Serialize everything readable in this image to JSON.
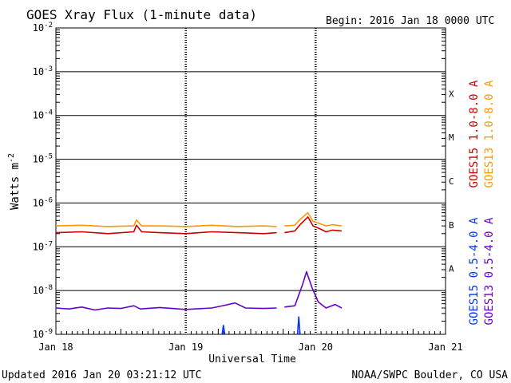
{
  "chart_data": {
    "type": "line",
    "title": "GOES Xray Flux (1-minute data)",
    "begin_label": "Begin:  2016 Jan 18 0000 UTC",
    "ylabel": "Watts m",
    "ylabel_sup": "-2",
    "xlabel": "Universal Time",
    "yscale": "log",
    "ylim": [
      1e-09,
      0.01
    ],
    "y_ticks": [
      {
        "mant": "10",
        "exp": "-2"
      },
      {
        "mant": "10",
        "exp": "-3"
      },
      {
        "mant": "10",
        "exp": "-4"
      },
      {
        "mant": "10",
        "exp": "-5"
      },
      {
        "mant": "10",
        "exp": "-6"
      },
      {
        "mant": "10",
        "exp": "-7"
      },
      {
        "mant": "10",
        "exp": "-8"
      },
      {
        "mant": "10",
        "exp": "-9"
      }
    ],
    "x_ticks": [
      "Jan 18",
      "Jan 19",
      "Jan 20",
      "Jan 21"
    ],
    "xlim_days": [
      0,
      3
    ],
    "flare_classes": [
      "X",
      "M",
      "C",
      "B",
      "A"
    ],
    "legend": [
      {
        "name": "GOES15 1.0-8.0 A",
        "color": "#cc0000"
      },
      {
        "name": "GOES13 1.0-8.0 A",
        "color": "#ff9900"
      },
      {
        "name": "GOES15 0.5-4.0 A",
        "color": "#0033ff"
      },
      {
        "name": "GOES13 0.5-4.0 A",
        "color": "#6600cc"
      }
    ],
    "series": [
      {
        "name": "GOES15 1.0-8.0 A",
        "color": "#cc0000",
        "points": [
          [
            0.0,
            2.1e-07
          ],
          [
            0.2,
            2.2e-07
          ],
          [
            0.4,
            2e-07
          ],
          [
            0.6,
            2.2e-07
          ],
          [
            0.62,
            3.1e-07
          ],
          [
            0.66,
            2.2e-07
          ],
          [
            0.8,
            2.1e-07
          ],
          [
            1.0,
            2e-07
          ],
          [
            1.2,
            2.2e-07
          ],
          [
            1.4,
            2.1e-07
          ],
          [
            1.6,
            2e-07
          ],
          [
            1.7,
            2.1e-07
          ],
          [
            null,
            null
          ],
          [
            1.76,
            2.1e-07
          ],
          [
            1.84,
            2.3e-07
          ],
          [
            1.88,
            3.2e-07
          ],
          [
            1.94,
            4.8e-07
          ],
          [
            1.98,
            3e-07
          ],
          [
            2.03,
            2.6e-07
          ],
          [
            2.08,
            2.2e-07
          ],
          [
            2.13,
            2.4e-07
          ],
          [
            2.2,
            2.3e-07
          ]
        ]
      },
      {
        "name": "GOES13 1.0-8.0 A",
        "color": "#ff9900",
        "points": [
          [
            0.0,
            3e-07
          ],
          [
            0.2,
            3.1e-07
          ],
          [
            0.4,
            2.9e-07
          ],
          [
            0.6,
            3e-07
          ],
          [
            0.62,
            4.1e-07
          ],
          [
            0.66,
            3e-07
          ],
          [
            0.8,
            3e-07
          ],
          [
            1.0,
            2.9e-07
          ],
          [
            1.2,
            3.1e-07
          ],
          [
            1.4,
            2.9e-07
          ],
          [
            1.6,
            3e-07
          ],
          [
            1.7,
            2.9e-07
          ],
          [
            null,
            null
          ],
          [
            1.76,
            3e-07
          ],
          [
            1.84,
            3.1e-07
          ],
          [
            1.88,
            4.2e-07
          ],
          [
            1.94,
            6e-07
          ],
          [
            1.98,
            3.8e-07
          ],
          [
            2.03,
            3.4e-07
          ],
          [
            2.08,
            3e-07
          ],
          [
            2.13,
            3.2e-07
          ],
          [
            2.2,
            3e-07
          ]
        ]
      },
      {
        "name": "GOES15 0.5-4.0 A",
        "color": "#0033ff",
        "points": [
          [
            1.28,
            1e-09
          ],
          [
            1.29,
            1.6e-09
          ],
          [
            1.3,
            1e-09
          ],
          [
            null,
            null
          ],
          [
            1.86,
            1e-09
          ],
          [
            1.87,
            2.5e-09
          ],
          [
            1.88,
            1e-09
          ]
        ]
      },
      {
        "name": "GOES13 0.5-4.0 A",
        "color": "#6600cc",
        "points": [
          [
            0.0,
            4e-09
          ],
          [
            0.1,
            3.8e-09
          ],
          [
            0.2,
            4.2e-09
          ],
          [
            0.3,
            3.6e-09
          ],
          [
            0.4,
            4e-09
          ],
          [
            0.5,
            3.9e-09
          ],
          [
            0.6,
            4.5e-09
          ],
          [
            0.65,
            3.8e-09
          ],
          [
            0.8,
            4.1e-09
          ],
          [
            1.0,
            3.7e-09
          ],
          [
            1.2,
            4e-09
          ],
          [
            1.3,
            4.6e-09
          ],
          [
            1.38,
            5.2e-09
          ],
          [
            1.46,
            4e-09
          ],
          [
            1.6,
            3.9e-09
          ],
          [
            1.7,
            4e-09
          ],
          [
            null,
            null
          ],
          [
            1.76,
            4.2e-09
          ],
          [
            1.84,
            4.5e-09
          ],
          [
            1.9,
            1.4e-08
          ],
          [
            1.93,
            2.7e-08
          ],
          [
            1.97,
            1.2e-08
          ],
          [
            2.02,
            5.5e-09
          ],
          [
            2.08,
            4e-09
          ],
          [
            2.15,
            4.8e-09
          ],
          [
            2.2,
            4e-09
          ]
        ]
      }
    ]
  },
  "footer": {
    "updated": "Updated 2016 Jan 20 03:21:12 UTC",
    "credit": "NOAA/SWPC Boulder, CO USA"
  }
}
